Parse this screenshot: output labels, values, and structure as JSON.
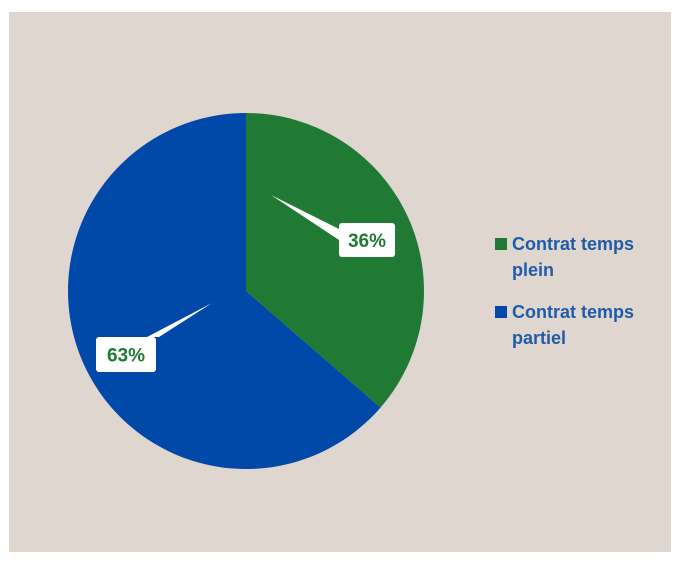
{
  "chart_data": {
    "type": "pie",
    "slices": [
      {
        "label": "Contrat temps plein",
        "value": 36,
        "display": "36%",
        "color": "#217a33"
      },
      {
        "label": "Contrat temps partiel",
        "value": 63,
        "display": "63%",
        "color": "#0049a8"
      }
    ],
    "legend": {
      "placement": "right"
    },
    "data_label_color": "#217a33"
  },
  "legend_items": [
    {
      "label": "Contrat temps plein",
      "color": "#217a33"
    },
    {
      "label": "Contrat temps partiel",
      "color": "#0049a8"
    }
  ]
}
